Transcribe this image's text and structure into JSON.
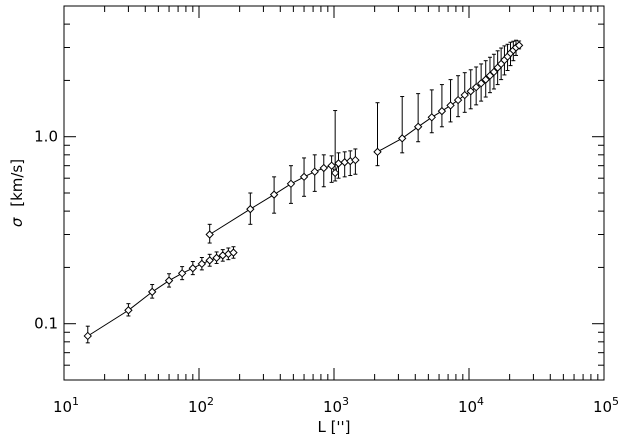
{
  "chart_data": {
    "type": "scatter",
    "xscale": "log",
    "yscale": "log",
    "xlim": [
      10,
      100000
    ],
    "ylim": [
      0.05,
      5
    ],
    "grid": false,
    "xlabel": "L ['']",
    "ylabel_symbol": "σ",
    "ylabel": "[km/s]",
    "xtick_labels": [
      {
        "base": "10",
        "exp": "1",
        "value": 10
      },
      {
        "base": "10",
        "exp": "2",
        "value": 100
      },
      {
        "base": "10",
        "exp": "3",
        "value": 1000
      },
      {
        "base": "10",
        "exp": "4",
        "value": 10000
      },
      {
        "base": "10",
        "exp": "5",
        "value": 100000
      }
    ],
    "ytick_labels": [
      {
        "label": "0.1",
        "value": 0.1
      },
      {
        "label": "1.0",
        "value": 1.0
      }
    ],
    "series": [
      {
        "points": [
          {
            "x": 15,
            "y": 0.086,
            "ylo": 0.079,
            "yhi": 0.097
          },
          {
            "x": 30,
            "y": 0.118,
            "ylo": 0.11,
            "yhi": 0.128
          },
          {
            "x": 45,
            "y": 0.148,
            "ylo": 0.137,
            "yhi": 0.162
          },
          {
            "x": 60,
            "y": 0.17,
            "ylo": 0.157,
            "yhi": 0.185
          },
          {
            "x": 75,
            "y": 0.186,
            "ylo": 0.172,
            "yhi": 0.202
          },
          {
            "x": 90,
            "y": 0.198,
            "ylo": 0.183,
            "yhi": 0.215
          },
          {
            "x": 105,
            "y": 0.209,
            "ylo": 0.194,
            "yhi": 0.226
          },
          {
            "x": 120,
            "y": 0.218,
            "ylo": 0.203,
            "yhi": 0.235
          },
          {
            "x": 135,
            "y": 0.225,
            "ylo": 0.21,
            "yhi": 0.242
          },
          {
            "x": 150,
            "y": 0.232,
            "ylo": 0.216,
            "yhi": 0.249
          },
          {
            "x": 165,
            "y": 0.236,
            "ylo": 0.22,
            "yhi": 0.254
          },
          {
            "x": 180,
            "y": 0.24,
            "ylo": 0.224,
            "yhi": 0.258
          }
        ]
      },
      {
        "points": [
          {
            "x": 120,
            "y": 0.3,
            "ylo": 0.27,
            "yhi": 0.34
          },
          {
            "x": 240,
            "y": 0.41,
            "ylo": 0.34,
            "yhi": 0.5
          },
          {
            "x": 360,
            "y": 0.49,
            "ylo": 0.39,
            "yhi": 0.61
          },
          {
            "x": 480,
            "y": 0.56,
            "ylo": 0.44,
            "yhi": 0.7
          },
          {
            "x": 600,
            "y": 0.61,
            "ylo": 0.48,
            "yhi": 0.77
          },
          {
            "x": 720,
            "y": 0.65,
            "ylo": 0.51,
            "yhi": 0.8
          },
          {
            "x": 840,
            "y": 0.68,
            "ylo": 0.54,
            "yhi": 0.8
          },
          {
            "x": 960,
            "y": 0.7,
            "ylo": 0.57,
            "yhi": 0.79
          },
          {
            "x": 1020,
            "y": 0.64,
            "ylo": 0.58,
            "yhi": 1.38
          },
          {
            "x": 1080,
            "y": 0.72,
            "ylo": 0.6,
            "yhi": 0.82
          },
          {
            "x": 1200,
            "y": 0.73,
            "ylo": 0.61,
            "yhi": 0.83
          },
          {
            "x": 1320,
            "y": 0.74,
            "ylo": 0.62,
            "yhi": 0.84
          },
          {
            "x": 1440,
            "y": 0.75,
            "ylo": 0.63,
            "yhi": 0.86
          }
        ]
      },
      {
        "points": [
          {
            "x": 2100,
            "y": 0.83,
            "ylo": 0.7,
            "yhi": 1.52
          },
          {
            "x": 3200,
            "y": 0.98,
            "ylo": 0.82,
            "yhi": 1.64
          },
          {
            "x": 4200,
            "y": 1.13,
            "ylo": 0.94,
            "yhi": 1.7
          },
          {
            "x": 5300,
            "y": 1.27,
            "ylo": 1.05,
            "yhi": 1.78
          },
          {
            "x": 6300,
            "y": 1.37,
            "ylo": 1.13,
            "yhi": 1.9
          },
          {
            "x": 7300,
            "y": 1.47,
            "ylo": 1.2,
            "yhi": 2.02
          },
          {
            "x": 8300,
            "y": 1.57,
            "ylo": 1.28,
            "yhi": 2.12
          },
          {
            "x": 9300,
            "y": 1.67,
            "ylo": 1.35,
            "yhi": 2.2
          },
          {
            "x": 10300,
            "y": 1.75,
            "ylo": 1.41,
            "yhi": 2.28
          },
          {
            "x": 11300,
            "y": 1.84,
            "ylo": 1.48,
            "yhi": 2.36
          },
          {
            "x": 12300,
            "y": 1.93,
            "ylo": 1.55,
            "yhi": 2.45
          },
          {
            "x": 13300,
            "y": 2.02,
            "ylo": 1.63,
            "yhi": 2.55
          },
          {
            "x": 14300,
            "y": 2.12,
            "ylo": 1.72,
            "yhi": 2.66
          },
          {
            "x": 15300,
            "y": 2.22,
            "ylo": 1.8,
            "yhi": 2.76
          },
          {
            "x": 16300,
            "y": 2.34,
            "ylo": 1.9,
            "yhi": 2.88
          },
          {
            "x": 17300,
            "y": 2.45,
            "ylo": 2.02,
            "yhi": 2.98
          },
          {
            "x": 18300,
            "y": 2.57,
            "ylo": 2.14,
            "yhi": 3.06
          },
          {
            "x": 19300,
            "y": 2.68,
            "ylo": 2.26,
            "yhi": 3.12
          },
          {
            "x": 20300,
            "y": 2.8,
            "ylo": 2.4,
            "yhi": 3.2
          },
          {
            "x": 21300,
            "y": 2.9,
            "ylo": 2.55,
            "yhi": 3.24
          },
          {
            "x": 22300,
            "y": 3.0,
            "ylo": 2.72,
            "yhi": 3.28
          },
          {
            "x": 23500,
            "y": 3.08,
            "ylo": 2.95,
            "yhi": 3.25
          }
        ]
      }
    ]
  }
}
